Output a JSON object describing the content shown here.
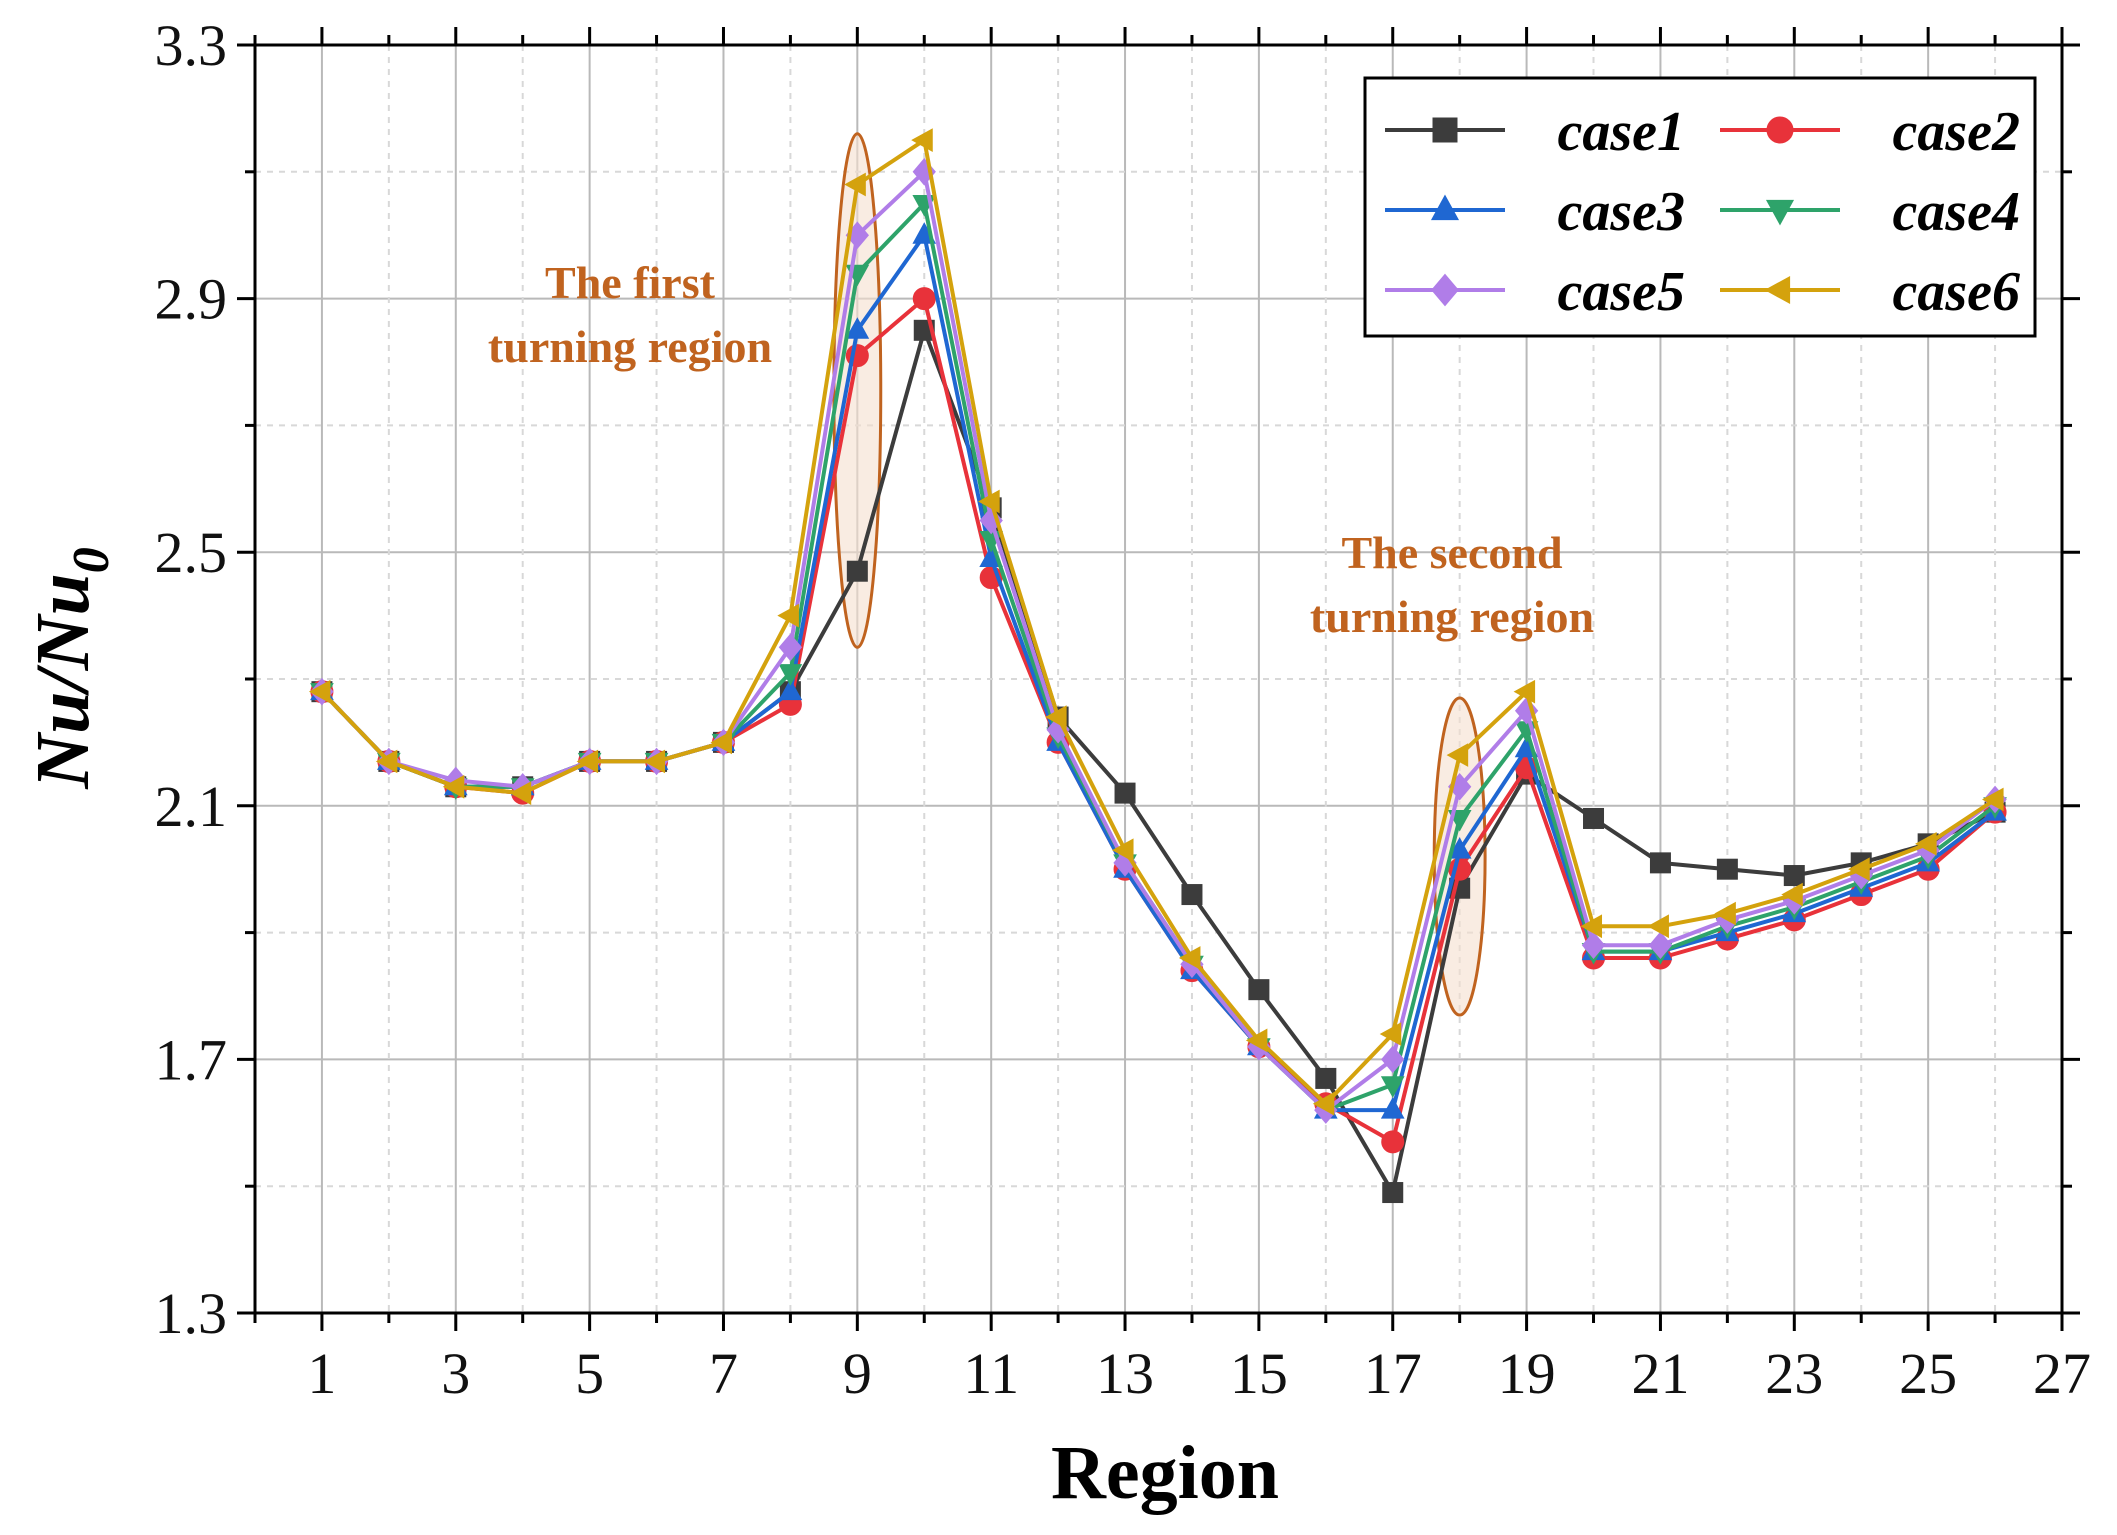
{
  "chart_data": {
    "type": "line",
    "title": "",
    "xlabel": "Region",
    "ylabel_main": "Nu/Nu",
    "ylabel_sub": "0",
    "xlim": [
      0,
      27
    ],
    "ylim": [
      1.3,
      3.3
    ],
    "xticks": [
      "1",
      "3",
      "5",
      "7",
      "9",
      "11",
      "13",
      "15",
      "17",
      "19",
      "21",
      "23",
      "25",
      "27"
    ],
    "yticks": [
      "1.3",
      "1.7",
      "2.1",
      "2.5",
      "2.9",
      "3.3"
    ],
    "x": [
      1,
      2,
      3,
      4,
      5,
      6,
      7,
      8,
      9,
      10,
      11,
      12,
      13,
      14,
      15,
      16,
      17,
      18,
      19,
      20,
      21,
      22,
      23,
      24,
      25,
      26
    ],
    "series": [
      {
        "name": "case1",
        "color": "#3c3c3c",
        "marker": "square",
        "values": [
          2.28,
          2.17,
          2.13,
          2.13,
          2.17,
          2.17,
          2.2,
          2.28,
          2.47,
          2.85,
          2.57,
          2.24,
          2.12,
          1.96,
          1.81,
          1.67,
          1.49,
          1.97,
          2.15,
          2.08,
          2.01,
          2.0,
          1.99,
          2.01,
          2.04,
          2.09
        ]
      },
      {
        "name": "case2",
        "color": "#e8323a",
        "marker": "circle",
        "values": [
          2.28,
          2.17,
          2.13,
          2.12,
          2.17,
          2.17,
          2.2,
          2.26,
          2.81,
          2.9,
          2.46,
          2.2,
          2.0,
          1.84,
          1.72,
          1.63,
          1.57,
          2.0,
          2.16,
          1.86,
          1.86,
          1.89,
          1.92,
          1.96,
          2.0,
          2.09
        ]
      },
      {
        "name": "case3",
        "color": "#1f67d2",
        "marker": "triangle-up",
        "values": [
          2.28,
          2.17,
          2.13,
          2.13,
          2.17,
          2.17,
          2.2,
          2.28,
          2.85,
          3.0,
          2.49,
          2.2,
          2.0,
          1.84,
          1.72,
          1.62,
          1.62,
          2.03,
          2.19,
          1.87,
          1.87,
          1.9,
          1.93,
          1.97,
          2.01,
          2.09
        ]
      },
      {
        "name": "case4",
        "color": "#2ea36a",
        "marker": "triangle-down",
        "values": [
          2.28,
          2.17,
          2.13,
          2.13,
          2.17,
          2.17,
          2.2,
          2.31,
          2.94,
          3.05,
          2.52,
          2.21,
          2.01,
          1.85,
          1.72,
          1.62,
          1.66,
          2.08,
          2.22,
          1.87,
          1.87,
          1.91,
          1.94,
          1.98,
          2.02,
          2.1
        ]
      },
      {
        "name": "case5",
        "color": "#b07de8",
        "marker": "diamond",
        "values": [
          2.28,
          2.17,
          2.14,
          2.13,
          2.17,
          2.17,
          2.2,
          2.35,
          3.0,
          3.1,
          2.55,
          2.22,
          2.01,
          1.85,
          1.72,
          1.62,
          1.7,
          2.13,
          2.25,
          1.88,
          1.88,
          1.92,
          1.95,
          1.99,
          2.03,
          2.11
        ]
      },
      {
        "name": "case6",
        "color": "#d4a20d",
        "marker": "triangle-left",
        "values": [
          2.28,
          2.17,
          2.13,
          2.12,
          2.17,
          2.17,
          2.2,
          2.4,
          3.08,
          3.15,
          2.58,
          2.24,
          2.03,
          1.86,
          1.73,
          1.63,
          1.74,
          2.18,
          2.28,
          1.91,
          1.91,
          1.93,
          1.96,
          2.0,
          2.04,
          2.11
        ]
      }
    ],
    "legend_position": "top-right",
    "annotations": [
      {
        "text_line1": "The first",
        "text_line2": "turning region",
        "region": 9
      },
      {
        "text_line1": "The second",
        "text_line2": "turning region",
        "region": 18
      }
    ],
    "highlight_ellipses": [
      {
        "x_center": 9,
        "y_min": 2.35,
        "y_max": 3.16,
        "x_halfwidth": 0.35,
        "color": "#c0631f"
      },
      {
        "x_center": 18,
        "y_min": 1.77,
        "y_max": 2.27,
        "x_halfwidth": 0.38,
        "color": "#c0631f"
      }
    ]
  }
}
